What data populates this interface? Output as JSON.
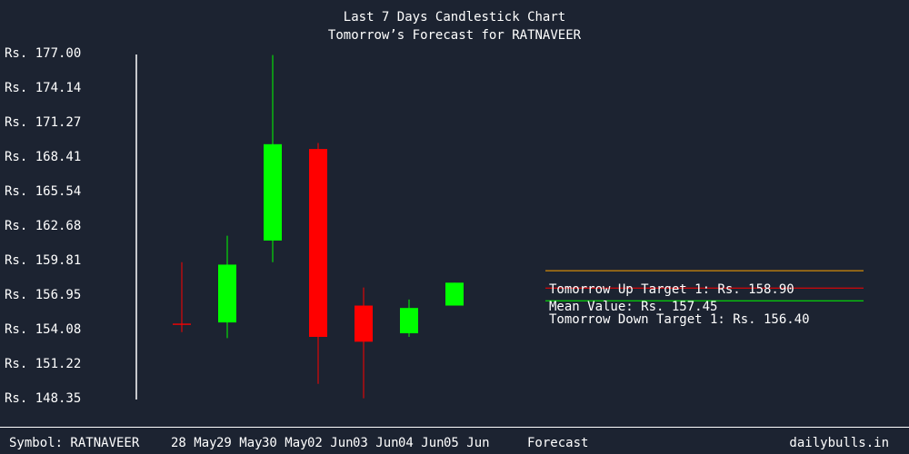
{
  "chart_data": {
    "type": "candlestick",
    "title": "Last 7 Days Candlestick Chart",
    "subtitle": "Tomorrow’s Forecast for RATNAVEER",
    "y_ticks": [
      "Rs. 177.00",
      "Rs. 174.14",
      "Rs. 171.27",
      "Rs. 168.41",
      "Rs. 165.54",
      "Rs. 162.68",
      "Rs. 159.81",
      "Rs. 156.95",
      "Rs. 154.08",
      "Rs. 151.22",
      "Rs. 148.35"
    ],
    "ylim": [
      148.35,
      177.0
    ],
    "colors": {
      "up": "#00ff00",
      "down": "#ff0000",
      "axis": "#ffffff",
      "background": "#1c2331",
      "forecast_up": "#ffa500",
      "forecast_mean": "#ff0000",
      "forecast_down": "#00ff00"
    },
    "candles": [
      {
        "label": "28 May",
        "open": 154.5,
        "high": 159.6,
        "low": 153.8,
        "close": 154.4
      },
      {
        "label": "29 May",
        "open": 154.6,
        "high": 161.8,
        "low": 153.3,
        "close": 159.4
      },
      {
        "label": "30 May",
        "open": 161.4,
        "high": 176.8,
        "low": 159.6,
        "close": 169.4
      },
      {
        "label": "02 Jun",
        "open": 169.0,
        "high": 169.5,
        "low": 149.5,
        "close": 153.4
      },
      {
        "label": "03 Jun",
        "open": 156.0,
        "high": 157.5,
        "low": 148.3,
        "close": 153.0
      },
      {
        "label": "04 Jun",
        "open": 153.7,
        "high": 156.5,
        "low": 153.4,
        "close": 155.8
      },
      {
        "label": "05 Jun",
        "open": 156.0,
        "high": 157.9,
        "low": 156.0,
        "close": 157.9
      }
    ],
    "forecast": {
      "label": "Forecast",
      "up_target_value": 158.9,
      "mean_value": 157.45,
      "down_target_value": 156.4,
      "up_target_text": "Tomorrow Up Target 1: Rs. 158.90",
      "mean_text": "Mean Value: Rs. 157.45",
      "down_target_text": "Tomorrow Down Target 1: Rs. 156.40"
    }
  },
  "footer": {
    "symbol": "Symbol: RATNAVEER",
    "brand": "dailybulls.in"
  }
}
